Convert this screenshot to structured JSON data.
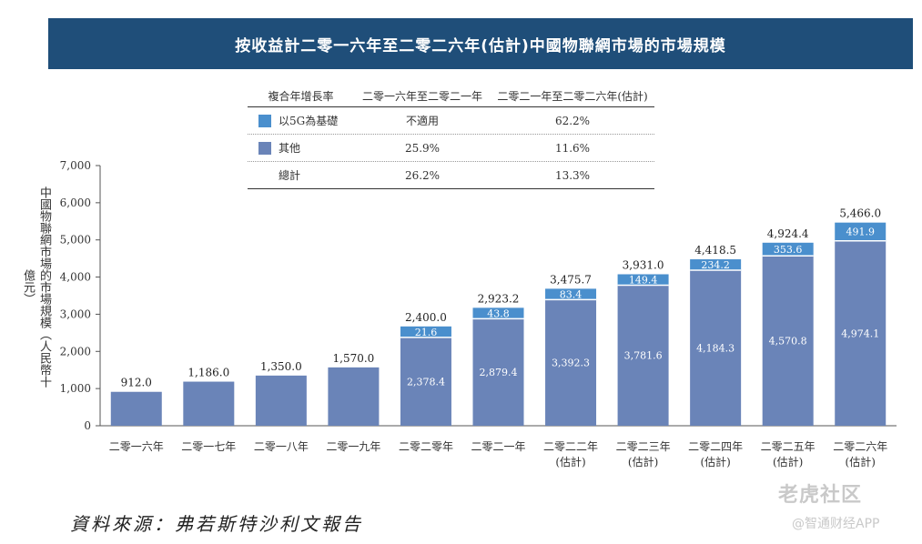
{
  "title": "按收益計二零一六年至二零二六年(估計)中國物聯網市場的市場規模",
  "table": {
    "headers": [
      "複合年增長率",
      "二零一六年至二零二一年",
      "二零二一年至二零二六年(估計)"
    ],
    "rows": [
      {
        "label": "以5G為基礎",
        "col1": "不適用",
        "col2": "62.2%",
        "color": "#4a8fcd"
      },
      {
        "label": "其他",
        "col1": "25.9%",
        "col2": "11.6%",
        "color": "#6a84b8"
      },
      {
        "label": "總計",
        "col1": "26.2%",
        "col2": "13.3%",
        "color": ""
      }
    ]
  },
  "chart_data": {
    "type": "bar",
    "stacked": true,
    "categories": [
      "二零一六年",
      "二零一七年",
      "二零一八年",
      "二零一九年",
      "二零二零年",
      "二零二一年",
      "二零二二年\n(估計)",
      "二零二三年\n(估計)",
      "二零二四年\n(估計)",
      "二零二五年\n(估計)",
      "二零二六年\n(估計)"
    ],
    "series": [
      {
        "name": "其他",
        "color": "#6a84b8",
        "values": [
          912.0,
          1186.0,
          1350.0,
          1570.0,
          2378.4,
          2879.4,
          3392.3,
          3781.6,
          4184.3,
          4570.8,
          4974.1
        ]
      },
      {
        "name": "以5G為基礎",
        "color": "#4a8fcd",
        "values": [
          0,
          0,
          0,
          0,
          21.6,
          43.8,
          83.4,
          149.4,
          234.2,
          353.6,
          491.9
        ]
      }
    ],
    "totals": [
      912.0,
      1186.0,
      1350.0,
      1570.0,
      2400.0,
      2923.2,
      3475.7,
      3931.0,
      4418.5,
      4924.4,
      5466.0
    ],
    "value_labels_other": [
      "",
      "",
      "",
      "",
      "2,378.4",
      "2,879.4",
      "3,392.3",
      "3,781.6",
      "4,184.3",
      "4,570.8",
      "4,974.1"
    ],
    "value_labels_5g": [
      "",
      "",
      "",
      "",
      "21.6",
      "43.8",
      "83.4",
      "149.4",
      "234.2",
      "353.6",
      "491.9"
    ],
    "total_labels": [
      "912.0",
      "1,186.0",
      "1,350.0",
      "1,570.0",
      "2,400.0",
      "2,923.2",
      "3,475.7",
      "3,931.0",
      "4,418.5",
      "4,924.4",
      "5,466.0"
    ],
    "ylabel": "中國物聯網市場的市場規模（人民幣十億元）",
    "ylim": [
      0,
      7000
    ],
    "yticks": [
      "0",
      "1,000",
      "2,000",
      "3,000",
      "4,000",
      "5,000",
      "6,000",
      "7,000"
    ],
    "grid": false
  },
  "source": "資料來源：弗若斯特沙利文報告",
  "watermarks": [
    "老虎社区",
    "@智通财经APP"
  ]
}
